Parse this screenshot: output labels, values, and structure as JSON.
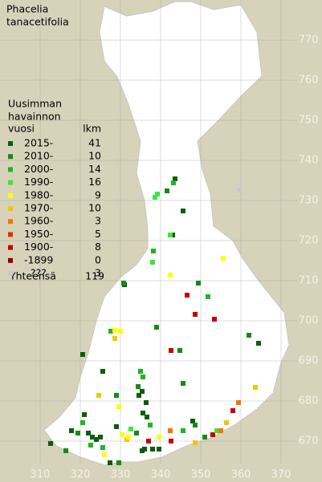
{
  "title": [
    "Phacelia",
    "tanacetifolia"
  ],
  "legend": {
    "heading": [
      "Uusimman",
      "havainnon",
      "vuosi"
    ],
    "count_heading": "lkm",
    "entries": [
      {
        "label": "2015-",
        "count": 41,
        "color": "#0b5e0b"
      },
      {
        "label": "2010-",
        "count": 10,
        "color": "#168a16"
      },
      {
        "label": "2000-",
        "count": 14,
        "color": "#22b422"
      },
      {
        "label": "1990-",
        "count": 16,
        "color": "#3ce63c"
      },
      {
        "label": "1980-",
        "count": 9,
        "color": "#ffff00"
      },
      {
        "label": "1970-",
        "count": 10,
        "color": "#f0c800"
      },
      {
        "label": "1960-",
        "count": 3,
        "color": "#f07800"
      },
      {
        "label": "1950-",
        "count": 5,
        "color": "#e63200"
      },
      {
        "label": "1900-",
        "count": 8,
        "color": "#c80000"
      },
      {
        "label": "-1899",
        "count": 0,
        "color": "#8c0000"
      },
      {
        "label": "???",
        "count": 3,
        "color": "#c8c8c8"
      }
    ],
    "total_label": "Yhteensä",
    "total": 119
  },
  "xlim": [
    300,
    380
  ],
  "ylim": [
    660,
    780
  ],
  "xticks": [
    310,
    320,
    330,
    340,
    350,
    360,
    370
  ],
  "yticks": [
    670,
    680,
    690,
    700,
    710,
    720,
    730,
    740,
    750,
    760,
    770
  ],
  "observations": [
    [
      343.6,
      735.4,
      0
    ],
    [
      343.2,
      734.4,
      2
    ],
    [
      341.6,
      732.4,
      1
    ],
    [
      339.2,
      731.6,
      3
    ],
    [
      338.6,
      730.8,
      3
    ],
    [
      359.6,
      732.6,
      10
    ],
    [
      345.6,
      727.4,
      0
    ],
    [
      343,
      721.4,
      0
    ],
    [
      342.4,
      721.4,
      3
    ],
    [
      338.2,
      717.4,
      2
    ],
    [
      338,
      714.6,
      3
    ],
    [
      355.6,
      715.6,
      4
    ],
    [
      342.4,
      711.4,
      4
    ],
    [
      331,
      709,
      0
    ],
    [
      330.8,
      709.4,
      1
    ],
    [
      349.4,
      709.4,
      1
    ],
    [
      346.6,
      706.4,
      8
    ],
    [
      351.8,
      706,
      2
    ],
    [
      348.6,
      701.6,
      8
    ],
    [
      353.4,
      700.4,
      8
    ],
    [
      339,
      698.4,
      1
    ],
    [
      327.6,
      697.4,
      2
    ],
    [
      328.6,
      697.6,
      4
    ],
    [
      330,
      697.4,
      4
    ],
    [
      328.6,
      695.6,
      5
    ],
    [
      362,
      696.4,
      1
    ],
    [
      364.4,
      694.4,
      0
    ],
    [
      320.6,
      691.6,
      0
    ],
    [
      342.6,
      692.6,
      8
    ],
    [
      344.8,
      692.6,
      1
    ],
    [
      325.6,
      687.4,
      0
    ],
    [
      335,
      687.4,
      2
    ],
    [
      335.6,
      686,
      2
    ],
    [
      334.4,
      683.6,
      1
    ],
    [
      335.4,
      682.4,
      0
    ],
    [
      334.6,
      681.4,
      0
    ],
    [
      345.6,
      684.4,
      1
    ],
    [
      363.6,
      683.4,
      5
    ],
    [
      324.6,
      681.4,
      5
    ],
    [
      329,
      681.4,
      1
    ],
    [
      336.4,
      679.6,
      0
    ],
    [
      359.4,
      679.6,
      6
    ],
    [
      329.6,
      678.6,
      4
    ],
    [
      358,
      677.6,
      8
    ],
    [
      321,
      676.6,
      0
    ],
    [
      317.8,
      672.6,
      0
    ],
    [
      319.4,
      672,
      1
    ],
    [
      320.6,
      674.6,
      2
    ],
    [
      322,
      672,
      0
    ],
    [
      323,
      671,
      0
    ],
    [
      324,
      670.4,
      0
    ],
    [
      325,
      671,
      0
    ],
    [
      322.6,
      669,
      2
    ],
    [
      325.6,
      668.4,
      2
    ],
    [
      326,
      666.6,
      4
    ],
    [
      327.4,
      664.6,
      0
    ],
    [
      329,
      673.6,
      0
    ],
    [
      330.4,
      671.6,
      4
    ],
    [
      331.6,
      670.4,
      5
    ],
    [
      332,
      671,
      4
    ],
    [
      332.6,
      673,
      3
    ],
    [
      334,
      672,
      1
    ],
    [
      335.6,
      677,
      0
    ],
    [
      336.6,
      676,
      0
    ],
    [
      337.4,
      674,
      2
    ],
    [
      337,
      670,
      8
    ],
    [
      336,
      668,
      0
    ],
    [
      338,
      668,
      0
    ],
    [
      339.6,
      668,
      0
    ],
    [
      335.4,
      667.6,
      0
    ],
    [
      339.6,
      671,
      4
    ],
    [
      342.6,
      670,
      8
    ],
    [
      342.4,
      672.6,
      6
    ],
    [
      345.6,
      672.6,
      2
    ],
    [
      348,
      675,
      0
    ],
    [
      348.6,
      674,
      1
    ],
    [
      348.6,
      669.6,
      5
    ],
    [
      351,
      671,
      1
    ],
    [
      353,
      671.6,
      8
    ],
    [
      354,
      672.6,
      3
    ],
    [
      355,
      672.6,
      6
    ],
    [
      356.4,
      674.6,
      5
    ],
    [
      312.6,
      669.4,
      0
    ],
    [
      316.4,
      667.6,
      1
    ],
    [
      329.6,
      664.6,
      1
    ]
  ]
}
